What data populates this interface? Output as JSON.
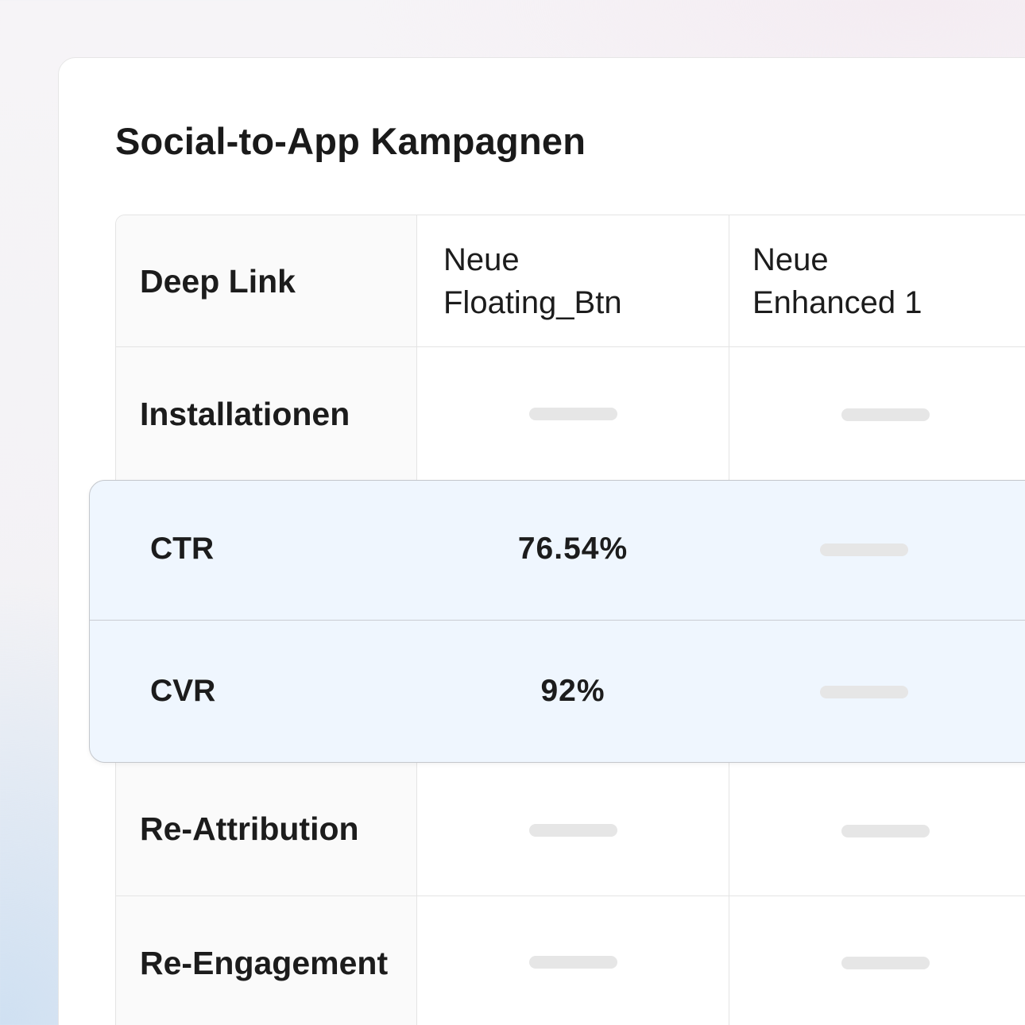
{
  "card": {
    "title": "Social-to-App Kampagnen"
  },
  "table": {
    "header": {
      "row_label": "Deep Link",
      "columns": [
        "Neue\nFloating_Btn",
        "Neue\nEnhanced 1"
      ]
    },
    "rows": [
      {
        "label": "Installationen",
        "values": [
          null,
          null
        ]
      },
      {
        "label": "CTR",
        "values": [
          "76.54%",
          null
        ],
        "highlighted": true
      },
      {
        "label": "CVR",
        "values": [
          "92%",
          null
        ],
        "highlighted": true
      },
      {
        "label": "Re-Attribution",
        "values": [
          null,
          null
        ]
      },
      {
        "label": "Re-Engagement",
        "values": [
          null,
          null
        ]
      }
    ]
  },
  "colors": {
    "highlight_background": "#eff6fe",
    "placeholder": "#e6e6e6"
  }
}
